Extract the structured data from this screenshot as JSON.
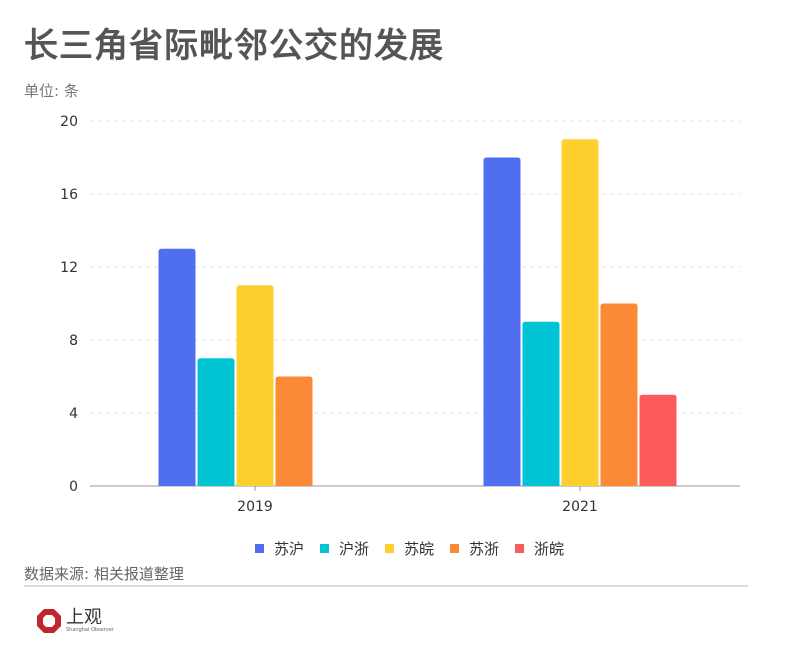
{
  "title": "长三角省际毗邻公交的发展",
  "unit": "单位: 条",
  "source": "数据来源: 相关报道整理",
  "logo": {
    "name": "上观",
    "sub": "Shanghai Observer"
  },
  "chart_data": {
    "type": "bar",
    "title": "长三角省际毗邻公交的发展",
    "ylabel": "单位: 条",
    "categories": [
      "2019",
      "2021"
    ],
    "ylim": [
      0,
      20
    ],
    "yticks": [
      0,
      4,
      8,
      12,
      16,
      20
    ],
    "grid": true,
    "legend_position": "bottom",
    "series": [
      {
        "name": "苏沪",
        "color": "#4f6ff0",
        "values": [
          13,
          18
        ]
      },
      {
        "name": "沪浙",
        "color": "#00c4d3",
        "values": [
          7,
          9
        ]
      },
      {
        "name": "苏皖",
        "color": "#fdcf2f",
        "values": [
          11,
          19
        ]
      },
      {
        "name": "苏浙",
        "color": "#fb8a36",
        "values": [
          6,
          10
        ]
      },
      {
        "name": "浙皖",
        "color": "#fb5b5b",
        "values": [
          0,
          5
        ]
      }
    ]
  }
}
